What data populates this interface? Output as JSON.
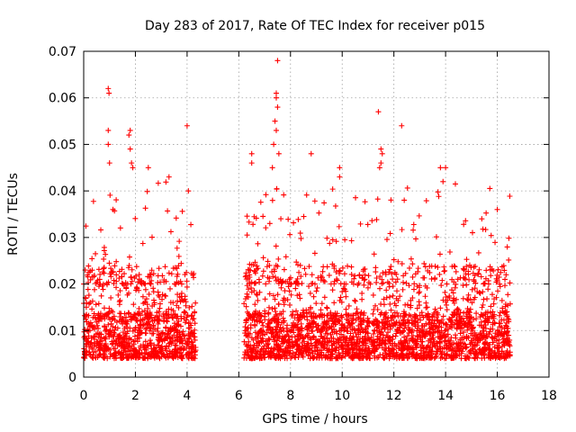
{
  "chart_data": {
    "type": "scatter",
    "title": "Day 283 of 2017, Rate Of TEC Index for receiver p015",
    "xlabel": "GPS time / hours",
    "ylabel": "ROTI / TECUs",
    "xlim": [
      0,
      18
    ],
    "ylim": [
      0,
      0.07
    ],
    "xticks": [
      0,
      2,
      4,
      6,
      8,
      10,
      12,
      14,
      16,
      18
    ],
    "xtick_labels": [
      "0",
      "2",
      "4",
      "6",
      "8",
      "10",
      "12",
      "14",
      "16",
      "18"
    ],
    "yticks": [
      0,
      0.01,
      0.02,
      0.03,
      0.04,
      0.05,
      0.06,
      0.07
    ],
    "ytick_labels": [
      "0",
      "0.01",
      "0.02",
      "0.03",
      "0.04",
      "0.05",
      "0.06",
      "0.07"
    ],
    "grid": true,
    "marker": "+",
    "color": "#ff0000",
    "series": [
      {
        "name": "ROTI",
        "segments": [
          {
            "x_range": [
              0.0,
              4.35
            ],
            "y_typical": [
              0.004,
              0.02
            ],
            "y_max": 0.062
          },
          {
            "x_range": [
              6.2,
              16.5
            ],
            "y_typical": [
              0.004,
              0.02
            ],
            "y_max": 0.068
          }
        ],
        "highlights": [
          {
            "x": 0.95,
            "y": 0.062
          },
          {
            "x": 0.98,
            "y": 0.061
          },
          {
            "x": 0.95,
            "y": 0.053
          },
          {
            "x": 0.95,
            "y": 0.05
          },
          {
            "x": 1.0,
            "y": 0.046
          },
          {
            "x": 1.8,
            "y": 0.053
          },
          {
            "x": 1.75,
            "y": 0.052
          },
          {
            "x": 1.8,
            "y": 0.049
          },
          {
            "x": 1.85,
            "y": 0.046
          },
          {
            "x": 1.9,
            "y": 0.045
          },
          {
            "x": 2.5,
            "y": 0.045
          },
          {
            "x": 3.3,
            "y": 0.043
          },
          {
            "x": 4.0,
            "y": 0.054
          },
          {
            "x": 4.05,
            "y": 0.04
          },
          {
            "x": 6.5,
            "y": 0.048
          },
          {
            "x": 6.5,
            "y": 0.046
          },
          {
            "x": 7.5,
            "y": 0.068
          },
          {
            "x": 7.45,
            "y": 0.061
          },
          {
            "x": 7.45,
            "y": 0.06
          },
          {
            "x": 7.5,
            "y": 0.058
          },
          {
            "x": 7.4,
            "y": 0.055
          },
          {
            "x": 7.45,
            "y": 0.053
          },
          {
            "x": 7.35,
            "y": 0.05
          },
          {
            "x": 7.3,
            "y": 0.045
          },
          {
            "x": 7.55,
            "y": 0.048
          },
          {
            "x": 8.8,
            "y": 0.048
          },
          {
            "x": 9.9,
            "y": 0.045
          },
          {
            "x": 9.9,
            "y": 0.043
          },
          {
            "x": 11.4,
            "y": 0.057
          },
          {
            "x": 11.5,
            "y": 0.049
          },
          {
            "x": 11.55,
            "y": 0.048
          },
          {
            "x": 11.5,
            "y": 0.046
          },
          {
            "x": 11.45,
            "y": 0.045
          },
          {
            "x": 12.3,
            "y": 0.054
          },
          {
            "x": 12.4,
            "y": 0.038
          },
          {
            "x": 13.8,
            "y": 0.045
          },
          {
            "x": 14.0,
            "y": 0.045
          },
          {
            "x": 13.9,
            "y": 0.042
          },
          {
            "x": 15.4,
            "y": 0.034
          },
          {
            "x": 16.0,
            "y": 0.036
          }
        ]
      }
    ]
  }
}
